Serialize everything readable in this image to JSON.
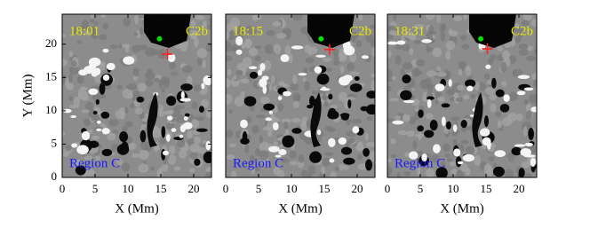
{
  "chart_data": [
    {
      "type": "image",
      "time_label": "18:01",
      "feature_label": "C2b",
      "region_label": "Region C",
      "xlabel": "X (Mm)",
      "ylabel": "Y (Mm)",
      "xlim": [
        0,
        22.7
      ],
      "ylim": [
        0,
        24.5
      ],
      "xticks": [
        0,
        5,
        10,
        15,
        20
      ],
      "yticks": [
        0,
        5,
        10,
        15,
        20
      ],
      "series": [
        {
          "color": "#00dd00",
          "marker": "dot",
          "x": [
            14.8
          ],
          "values": [
            20.8
          ]
        },
        {
          "color": "#ff2020",
          "marker": "cross",
          "x": [
            16.0
          ],
          "values": [
            18.5
          ]
        }
      ]
    },
    {
      "type": "image",
      "time_label": "18:15",
      "feature_label": "C2b",
      "region_label": "Region C",
      "xlabel": "X (Mm)",
      "xlim": [
        0,
        22.7
      ],
      "ylim": [
        0,
        24.5
      ],
      "xticks": [
        0,
        5,
        10,
        15,
        20
      ],
      "series": [
        {
          "color": "#00dd00",
          "marker": "dot",
          "x": [
            14.5
          ],
          "values": [
            20.8
          ]
        },
        {
          "color": "#ff2020",
          "marker": "cross",
          "x": [
            15.8
          ],
          "values": [
            19.2
          ]
        }
      ]
    },
    {
      "type": "image",
      "time_label": "18:31",
      "feature_label": "C2b",
      "region_label": "Region C",
      "xlabel": "X (Mm)",
      "xlim": [
        0,
        22.7
      ],
      "ylim": [
        0,
        24.5
      ],
      "xticks": [
        0,
        5,
        10,
        15,
        20
      ],
      "series": [
        {
          "color": "#00dd00",
          "marker": "dot",
          "x": [
            14.2
          ],
          "values": [
            20.8
          ]
        },
        {
          "color": "#ff2020",
          "marker": "cross",
          "x": [
            15.2
          ],
          "values": [
            19.3
          ]
        }
      ]
    }
  ]
}
